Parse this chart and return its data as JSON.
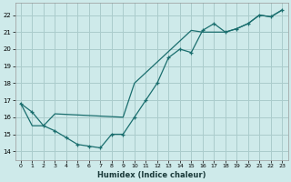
{
  "xlabel": "Humidex (Indice chaleur)",
  "bg_color": "#ceeaea",
  "grid_color": "#aacccc",
  "line_color": "#1a6e6e",
  "xlim": [
    -0.5,
    23.5
  ],
  "ylim": [
    13.5,
    22.7
  ],
  "xticks": [
    0,
    1,
    2,
    3,
    4,
    5,
    6,
    7,
    8,
    9,
    10,
    11,
    12,
    13,
    14,
    15,
    16,
    17,
    18,
    19,
    20,
    21,
    22,
    23
  ],
  "yticks": [
    14,
    15,
    16,
    17,
    18,
    19,
    20,
    21,
    22
  ],
  "line1_x": [
    0,
    1,
    2,
    3,
    4,
    5,
    6,
    7,
    8,
    9,
    10,
    11,
    12,
    13,
    14,
    15,
    16,
    17,
    18,
    19,
    20,
    21,
    22,
    23
  ],
  "line1_y": [
    16.8,
    16.3,
    15.5,
    15.2,
    14.8,
    14.4,
    14.3,
    14.2,
    15.0,
    15.0,
    16.0,
    17.0,
    18.0,
    19.5,
    20.0,
    19.8,
    21.1,
    21.5,
    21.0,
    21.2,
    21.5,
    22.0,
    21.9,
    22.3
  ],
  "line2_x": [
    0,
    1,
    2,
    3,
    9,
    10,
    15,
    16,
    17,
    18,
    19,
    20,
    21,
    22,
    23
  ],
  "line2_y": [
    16.8,
    15.5,
    15.5,
    16.2,
    16.0,
    18.0,
    21.1,
    21.0,
    21.0,
    21.0,
    21.2,
    21.5,
    22.0,
    21.9,
    22.3
  ]
}
